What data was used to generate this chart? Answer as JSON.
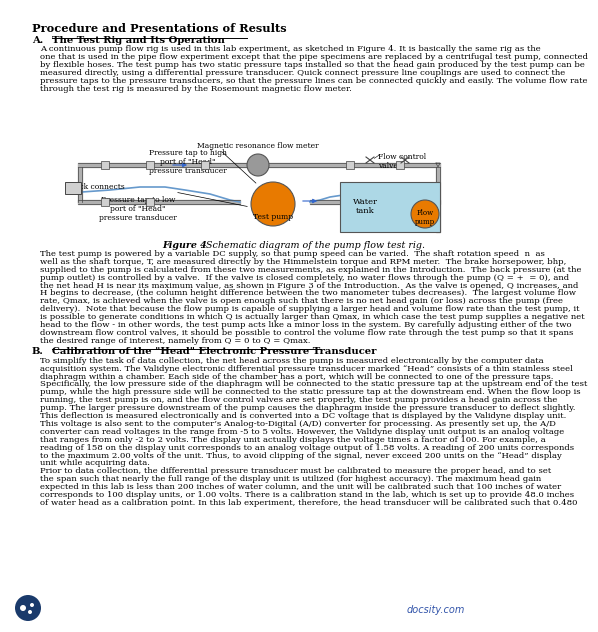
{
  "title": "Procedure and Presentations of Results",
  "section_a_label": "A.",
  "section_a_underline": "The Test Rig and Its Operation",
  "para1": "A continuous pump flow rig is used in this lab experiment, as sketched in Figure 4. It is basically the same rig as the\none that is used in the pipe flow experiment except that the pipe specimens are replaced by a centrifugal test pump, connected\nby flexible hoses. The test pump has two static pressure taps installed so that the head gain produced by the test pump can be\nmeasured directly, using a differential pressure transducer. Quick connect pressure line couplings are used to connect the\npressure taps to the pressure transducers, so that the pressure lines can be connected quickly and easily. The volume flow rate\nthrough the test rig is measured by the Rosemount magnetic flow meter.",
  "fig_caption_bold": "Figure 4",
  "fig_caption_rest": ". Schematic diagram of the pump flow test rig.",
  "para2": "The test pump is powered by a variable DC supply, so that pump speed can be varied.  The shaft rotation speed  n  as\nwell as the shaft torque, T, are measured directly by the Himmelstein torque and RPM meter.  The brake horsepower, bhp,\nsupplied to the pump is calculated from these two measurements, as explained in the Introduction.  The back pressure (at the\npump outlet) is controlled by a valve.  If the valve is closed completely, no water flows through the pump (Q = +  = 0), and\nthe net head H is near its maximum value, as shown in Figure 3 of the Introduction.  As the valve is opened, Q increases, and\nH begins to decrease, (the column height difference between the two manometer tubes decreases).  The largest volume flow\nrate, Qmax, is achieved when the valve is open enough such that there is no net head gain (or loss) across the pump (free\ndelivery).  Note that because the flow pump is capable of supplying a larger head and volume flow rate than the test pump, it\nis possible to generate conditions in which Q is actually larger than Qmax, in which case the test pump supplies a negative net\nhead to the flow - in other words, the test pump acts like a minor loss in the system. By carefully adjusting either of the two\ndownstream flow control valves, it should be possible to control the volume flow rate through the test pump so that it spans\nthe desired range of interest, namely from Q = 0 to Q = Qmax.",
  "section_b_label": "B.",
  "section_b_underline": "Calibration of the \"Head\" Electronic Pressure Transducer",
  "para3": "To simplify the task of data collection, the net head across the pump is measured electronically by the computer data\nacquisition system. The Validyne electronic differential pressure transducer marked “Head” consists of a thin stainless steel\ndiaphragm within a chamber. Each side of the chamber has a port, which will be connected to one of the pressure taps.\nSpecifically, the low pressure side of the diaphragm will be connected to the static pressure tap at the upstream end of the test\npump, while the high pressure side will be connected to the static pressure tap at the downstream end. When the flow loop is\nrunning, the test pump is on, and the flow control valves are set properly, the test pump provides a head gain across the\npump. The larger pressure downstream of the pump causes the diaphragm inside the pressure transducer to deflect slightly.\nThis deflection is measured electronically and is converted into a DC voltage that is displayed by the Validyne display unit.\nThis voltage is also sent to the computer’s Analog-to-Digital (A/D) converter for processing. As presently set up, the A/D\nconverter can read voltages in the range from -5 to 5 volts. However, the Validyne display unit output is an analog voltage\nthat ranges from only -2 to 2 volts. The display unit actually displays the voltage times a factor of 100. For example, a\nreading of 158 on the display unit corresponds to an analog voltage output of 1.58 volts. A reading of 200 units corresponds\nto the maximum 2.00 volts of the unit. Thus, to avoid clipping of the signal, never exceed 200 units on the “Head” display\nunit while acquiring data.",
  "para4": "Prior to data collection, the differential pressure transducer must be calibrated to measure the proper head, and to set\nthe span such that nearly the full range of the display unit is utilized (for highest accuracy). The maximum head gain\nexpected in this lab is less than 200 inches of water column, and the unit will be calibrated such that 100 inches of water\ncorresponds to 100 display units, or 1.00 volts. There is a calibration stand in the lab, which is set up to provide 48.0 inches\nof water head as a calibration point. In this lab experiment, therefore, the head transducer will be calibrated such that 0.480",
  "bg_color": "#ffffff",
  "text_color": "#000000"
}
